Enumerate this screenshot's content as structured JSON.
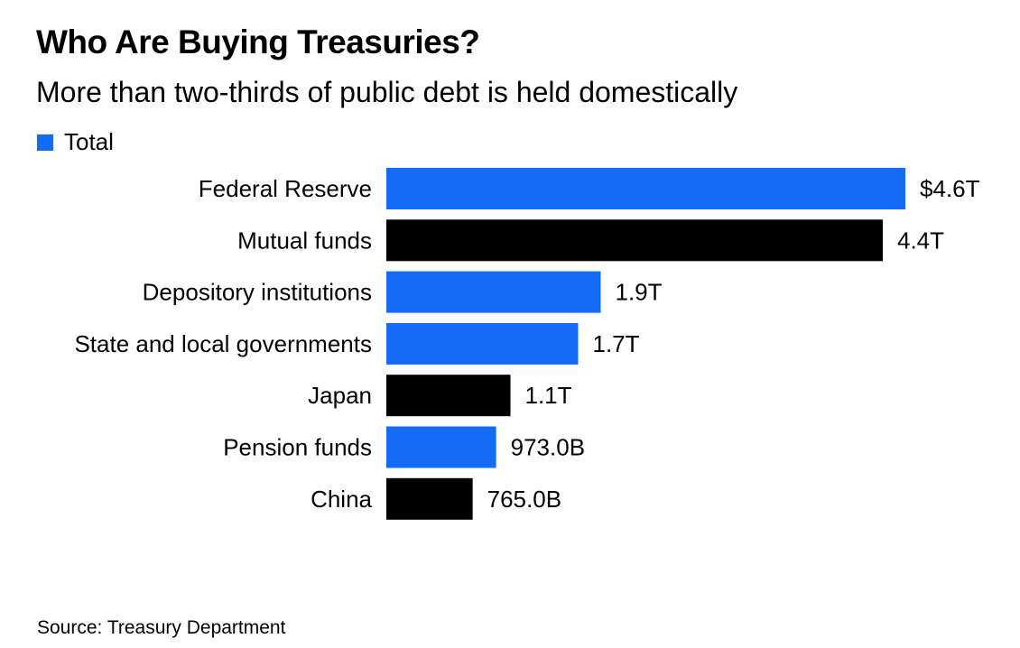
{
  "header": {
    "title": "Who Are Buying Treasuries?",
    "subtitle": "More than two-thirds of public debt is held domestically"
  },
  "legend": {
    "label": "Total",
    "color": "#146cf6"
  },
  "footer": {
    "source": "Source: Treasury Department"
  },
  "chart_data": {
    "type": "bar",
    "orientation": "horizontal",
    "title": "Who Are Buying Treasuries?",
    "subtitle": "More than two-thirds of public debt is held domestically",
    "legend": [
      "Total"
    ],
    "legend_position": "top-left",
    "units": "USD trillions",
    "categories": [
      "Federal Reserve",
      "Mutual funds",
      "Depository institutions",
      "State and local governments",
      "Japan",
      "Pension funds",
      "China"
    ],
    "values": [
      4.6,
      4.4,
      1.9,
      1.7,
      1.1,
      0.973,
      0.765
    ],
    "data_labels": [
      "$4.6T",
      "4.4T",
      "1.9T",
      "1.7T",
      "1.1T",
      "973.0B",
      "765.0B"
    ],
    "colors": [
      "#146cf6",
      "#000000",
      "#146cf6",
      "#146cf6",
      "#000000",
      "#146cf6",
      "#000000"
    ],
    "xlim": [
      0,
      4.6
    ],
    "grid": false,
    "source": "Source: Treasury Department"
  }
}
